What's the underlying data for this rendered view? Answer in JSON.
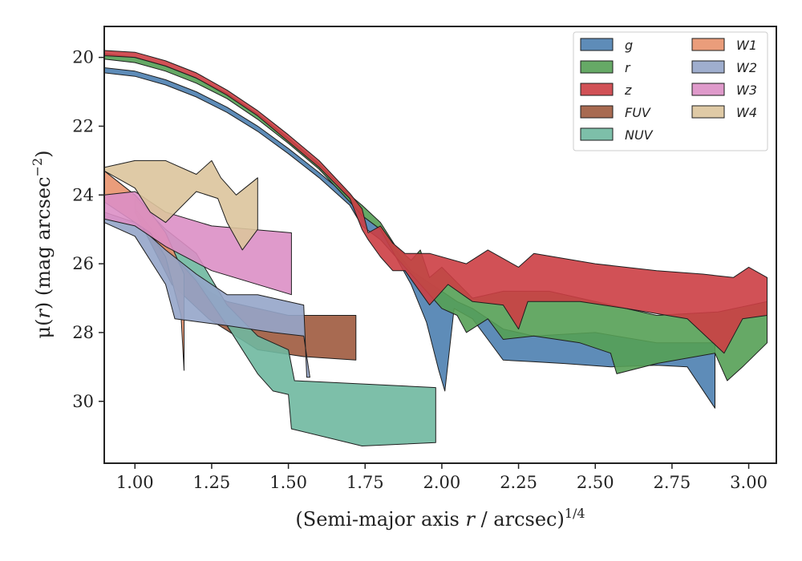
{
  "chart_data": {
    "type": "area",
    "xlabel": {
      "pre": "(Semi-major axis ",
      "var": "r",
      "post": " / arcsec)",
      "sup": "1/4"
    },
    "ylabel": {
      "pre": "μ(",
      "var": "r",
      "post": ") (mag arcsec",
      "sup": "−2",
      "end": ")"
    },
    "xlim": [
      0.9,
      3.09
    ],
    "ylim": [
      31.8,
      19.1
    ],
    "y_inverted": true,
    "grid": false,
    "legend_position": "upper-right",
    "legend_columns": 2,
    "xticks": [
      1.0,
      1.25,
      1.5,
      1.75,
      2.0,
      2.25,
      2.5,
      2.75,
      3.0
    ],
    "xtick_labels": [
      "1.00",
      "1.25",
      "1.50",
      "1.75",
      "2.00",
      "2.25",
      "2.50",
      "2.75",
      "3.00"
    ],
    "yticks": [
      20,
      22,
      24,
      26,
      28,
      30
    ],
    "ytick_labels": [
      "20",
      "22",
      "24",
      "26",
      "28",
      "30"
    ],
    "series": [
      {
        "name": "g",
        "color": "#4c7fb0",
        "upper": [
          [
            0.9,
            20.3
          ],
          [
            1.0,
            20.4
          ],
          [
            1.1,
            20.65
          ],
          [
            1.2,
            21.0
          ],
          [
            1.3,
            21.45
          ],
          [
            1.4,
            22.0
          ],
          [
            1.5,
            22.65
          ],
          [
            1.6,
            23.35
          ],
          [
            1.7,
            24.1
          ],
          [
            1.74,
            24.6
          ],
          [
            1.8,
            25.0
          ],
          [
            1.85,
            25.6
          ],
          [
            1.9,
            26.2
          ],
          [
            1.95,
            26.5
          ],
          [
            2.0,
            26.8
          ],
          [
            2.05,
            27.1
          ],
          [
            2.1,
            27.3
          ],
          [
            2.2,
            27.9
          ],
          [
            2.3,
            28.1
          ],
          [
            2.5,
            28.0
          ],
          [
            2.7,
            28.3
          ],
          [
            2.89,
            28.3
          ]
        ],
        "lower": [
          [
            0.9,
            20.45
          ],
          [
            1.0,
            20.55
          ],
          [
            1.1,
            20.8
          ],
          [
            1.2,
            21.15
          ],
          [
            1.3,
            21.6
          ],
          [
            1.4,
            22.15
          ],
          [
            1.5,
            22.8
          ],
          [
            1.6,
            23.5
          ],
          [
            1.7,
            24.3
          ],
          [
            1.74,
            24.9
          ],
          [
            1.8,
            25.3
          ],
          [
            1.85,
            25.8
          ],
          [
            1.9,
            26.6
          ],
          [
            1.95,
            27.7
          ],
          [
            1.99,
            29.1
          ],
          [
            2.01,
            29.7
          ],
          [
            2.04,
            27.3
          ],
          [
            2.1,
            27.6
          ],
          [
            2.15,
            28.2
          ],
          [
            2.2,
            28.8
          ],
          [
            2.3,
            28.85
          ],
          [
            2.4,
            28.9
          ],
          [
            2.55,
            29.0
          ],
          [
            2.7,
            28.95
          ],
          [
            2.8,
            29.0
          ],
          [
            2.89,
            30.2
          ]
        ]
      },
      {
        "name": "r",
        "color": "#55a055",
        "upper": [
          [
            0.9,
            19.9
          ],
          [
            1.0,
            20.0
          ],
          [
            1.1,
            20.25
          ],
          [
            1.2,
            20.6
          ],
          [
            1.3,
            21.05
          ],
          [
            1.4,
            21.65
          ],
          [
            1.5,
            22.35
          ],
          [
            1.6,
            23.1
          ],
          [
            1.7,
            24.0
          ],
          [
            1.74,
            24.3
          ],
          [
            1.8,
            24.8
          ],
          [
            1.85,
            25.5
          ],
          [
            1.9,
            25.9
          ],
          [
            1.93,
            25.6
          ],
          [
            1.96,
            26.4
          ],
          [
            2.0,
            26.1
          ],
          [
            2.1,
            27.0
          ],
          [
            2.2,
            26.8
          ],
          [
            2.35,
            26.8
          ],
          [
            2.5,
            27.1
          ],
          [
            2.7,
            27.5
          ],
          [
            2.9,
            27.4
          ],
          [
            3.06,
            27.1
          ]
        ],
        "lower": [
          [
            0.9,
            20.05
          ],
          [
            1.0,
            20.15
          ],
          [
            1.1,
            20.4
          ],
          [
            1.2,
            20.75
          ],
          [
            1.3,
            21.2
          ],
          [
            1.4,
            21.8
          ],
          [
            1.5,
            22.5
          ],
          [
            1.6,
            23.25
          ],
          [
            1.7,
            24.2
          ],
          [
            1.74,
            24.6
          ],
          [
            1.8,
            25.0
          ],
          [
            1.85,
            25.8
          ],
          [
            1.9,
            26.3
          ],
          [
            1.95,
            26.8
          ],
          [
            2.0,
            27.3
          ],
          [
            2.05,
            27.5
          ],
          [
            2.08,
            28.0
          ],
          [
            2.15,
            27.6
          ],
          [
            2.2,
            28.2
          ],
          [
            2.3,
            28.1
          ],
          [
            2.45,
            28.3
          ],
          [
            2.55,
            28.6
          ],
          [
            2.57,
            29.2
          ],
          [
            2.7,
            28.9
          ],
          [
            2.89,
            28.6
          ],
          [
            2.93,
            29.4
          ],
          [
            2.98,
            29.0
          ],
          [
            3.06,
            28.3
          ]
        ]
      },
      {
        "name": "z",
        "color": "#cc3e44",
        "upper": [
          [
            0.9,
            19.8
          ],
          [
            1.0,
            19.85
          ],
          [
            1.1,
            20.1
          ],
          [
            1.2,
            20.45
          ],
          [
            1.3,
            20.95
          ],
          [
            1.4,
            21.55
          ],
          [
            1.5,
            22.25
          ],
          [
            1.6,
            23.0
          ],
          [
            1.7,
            23.95
          ],
          [
            1.74,
            24.4
          ],
          [
            1.76,
            25.1
          ],
          [
            1.8,
            24.9
          ],
          [
            1.84,
            25.4
          ],
          [
            1.88,
            25.7
          ],
          [
            1.96,
            25.7
          ],
          [
            2.08,
            26.0
          ],
          [
            2.15,
            25.6
          ],
          [
            2.25,
            26.1
          ],
          [
            2.3,
            25.7
          ],
          [
            2.5,
            26.0
          ],
          [
            2.7,
            26.2
          ],
          [
            2.85,
            26.3
          ],
          [
            2.95,
            26.4
          ],
          [
            3.0,
            26.1
          ],
          [
            3.06,
            26.4
          ]
        ],
        "lower": [
          [
            0.9,
            19.95
          ],
          [
            1.0,
            20.0
          ],
          [
            1.1,
            20.25
          ],
          [
            1.2,
            20.6
          ],
          [
            1.3,
            21.1
          ],
          [
            1.4,
            21.7
          ],
          [
            1.5,
            22.45
          ],
          [
            1.6,
            23.2
          ],
          [
            1.7,
            24.1
          ],
          [
            1.74,
            25.0
          ],
          [
            1.76,
            25.3
          ],
          [
            1.8,
            25.8
          ],
          [
            1.84,
            26.2
          ],
          [
            1.88,
            26.2
          ],
          [
            1.96,
            27.2
          ],
          [
            2.02,
            26.6
          ],
          [
            2.1,
            27.1
          ],
          [
            2.2,
            27.2
          ],
          [
            2.25,
            27.9
          ],
          [
            2.28,
            27.1
          ],
          [
            2.45,
            27.1
          ],
          [
            2.6,
            27.3
          ],
          [
            2.8,
            27.6
          ],
          [
            2.92,
            28.6
          ],
          [
            2.98,
            27.6
          ],
          [
            3.06,
            27.5
          ]
        ]
      },
      {
        "name": "FUV",
        "color": "#9e5a3e",
        "upper": [
          [
            1.0,
            24.3
          ],
          [
            1.12,
            25.7
          ],
          [
            1.24,
            26.8
          ],
          [
            1.3,
            27.1
          ],
          [
            1.5,
            27.5
          ],
          [
            1.72,
            27.5
          ]
        ],
        "lower": [
          [
            1.0,
            24.5
          ],
          [
            1.12,
            26.6
          ],
          [
            1.24,
            27.6
          ],
          [
            1.4,
            28.5
          ],
          [
            1.55,
            28.7
          ],
          [
            1.72,
            28.8
          ]
        ]
      },
      {
        "name": "NUV",
        "color": "#6fb8a0",
        "upper": [
          [
            1.0,
            24.1
          ],
          [
            1.1,
            25.0
          ],
          [
            1.2,
            25.7
          ],
          [
            1.3,
            27.2
          ],
          [
            1.4,
            28.1
          ],
          [
            1.45,
            28.3
          ],
          [
            1.5,
            28.5
          ],
          [
            1.52,
            29.4
          ],
          [
            1.98,
            29.6
          ]
        ],
        "lower": [
          [
            1.0,
            24.4
          ],
          [
            1.1,
            25.5
          ],
          [
            1.2,
            26.5
          ],
          [
            1.3,
            27.8
          ],
          [
            1.4,
            29.2
          ],
          [
            1.45,
            29.7
          ],
          [
            1.5,
            29.8
          ],
          [
            1.51,
            30.8
          ],
          [
            1.74,
            31.3
          ],
          [
            1.98,
            31.2
          ]
        ]
      },
      {
        "name": "W1",
        "color": "#e8926d",
        "upper": [
          [
            0.9,
            23.3
          ],
          [
            1.0,
            24.0
          ],
          [
            1.05,
            24.5
          ],
          [
            1.1,
            25.1
          ],
          [
            1.16,
            26.3
          ]
        ],
        "lower": [
          [
            0.9,
            24.2
          ],
          [
            1.0,
            24.8
          ],
          [
            1.05,
            25.1
          ],
          [
            1.1,
            25.8
          ],
          [
            1.15,
            27.5
          ],
          [
            1.16,
            29.1
          ]
        ]
      },
      {
        "name": "W2",
        "color": "#95a5c9",
        "upper": [
          [
            0.9,
            24.5
          ],
          [
            1.0,
            24.8
          ],
          [
            1.1,
            25.6
          ],
          [
            1.2,
            26.3
          ],
          [
            1.3,
            26.9
          ],
          [
            1.4,
            26.9
          ],
          [
            1.55,
            27.2
          ],
          [
            1.56,
            29.3
          ]
        ],
        "lower": [
          [
            0.9,
            24.8
          ],
          [
            1.0,
            25.2
          ],
          [
            1.1,
            26.6
          ],
          [
            1.13,
            27.6
          ],
          [
            1.3,
            27.8
          ],
          [
            1.45,
            28.0
          ],
          [
            1.55,
            28.1
          ],
          [
            1.57,
            29.3
          ]
        ]
      },
      {
        "name": "W3",
        "color": "#dc8fc5",
        "upper": [
          [
            0.9,
            24.0
          ],
          [
            1.0,
            23.9
          ],
          [
            1.1,
            24.5
          ],
          [
            1.25,
            24.9
          ],
          [
            1.51,
            25.1
          ]
        ],
        "lower": [
          [
            0.9,
            24.7
          ],
          [
            1.0,
            24.9
          ],
          [
            1.1,
            25.5
          ],
          [
            1.25,
            26.2
          ],
          [
            1.51,
            26.9
          ]
        ]
      },
      {
        "name": "W4",
        "color": "#dcc49c",
        "upper": [
          [
            0.9,
            23.2
          ],
          [
            1.0,
            23.0
          ],
          [
            1.1,
            23.0
          ],
          [
            1.2,
            23.4
          ],
          [
            1.25,
            23.0
          ],
          [
            1.28,
            23.5
          ],
          [
            1.33,
            24.0
          ],
          [
            1.4,
            23.5
          ]
        ],
        "lower": [
          [
            0.9,
            23.3
          ],
          [
            1.0,
            23.8
          ],
          [
            1.05,
            24.5
          ],
          [
            1.1,
            24.8
          ],
          [
            1.2,
            23.9
          ],
          [
            1.27,
            24.1
          ],
          [
            1.3,
            24.8
          ],
          [
            1.35,
            25.6
          ],
          [
            1.4,
            25.0
          ]
        ]
      }
    ]
  }
}
